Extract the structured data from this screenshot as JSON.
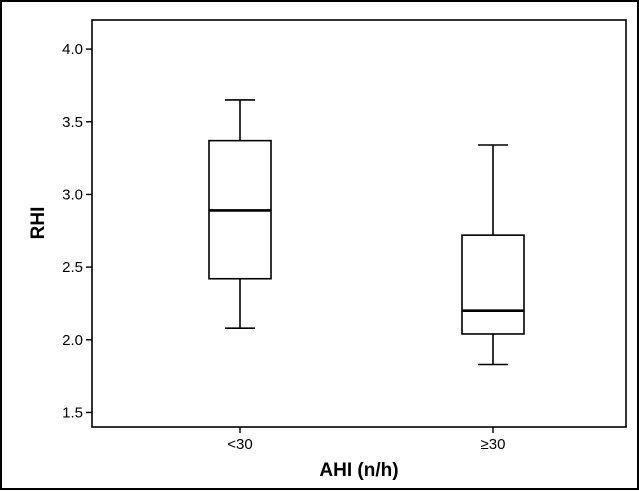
{
  "chart_data": {
    "type": "box",
    "title": "",
    "xlabel": "AHI (n/h)",
    "ylabel": "RHI",
    "categories": [
      "<30",
      "≥30"
    ],
    "boxes": [
      {
        "category": "<30",
        "whisker_low": 2.08,
        "q1": 2.42,
        "median": 2.89,
        "q3": 3.37,
        "whisker_high": 3.65
      },
      {
        "category": "≥30",
        "whisker_low": 1.83,
        "q1": 2.04,
        "median": 2.2,
        "q3": 2.72,
        "whisker_high": 3.34
      }
    ],
    "ylim": [
      1.4,
      4.2
    ],
    "yticks": [
      1.5,
      2.0,
      2.5,
      3.0,
      3.5,
      4.0
    ],
    "ytick_labels": [
      "1.5",
      "2.0",
      "2.5",
      "3.0",
      "3.5",
      "4.0"
    ],
    "grid": false,
    "legend": "none",
    "colors": {
      "line": "#000000",
      "box_fill": "#ffffff",
      "background": "#ffffff"
    }
  }
}
